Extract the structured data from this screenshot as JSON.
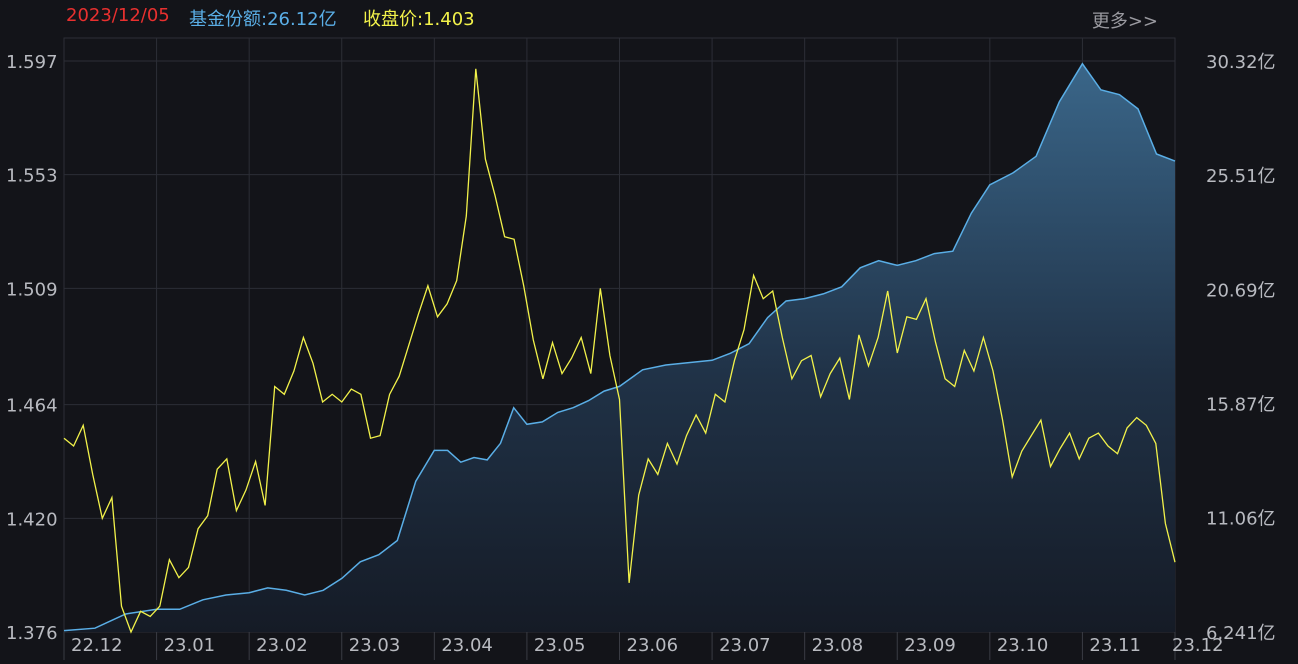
{
  "header": {
    "date": "2023/12/05",
    "shares_label": "基金份额:",
    "shares_value": "26.12亿",
    "price_label": "收盘价:",
    "price_value": "1.403",
    "more_label": "更多>>"
  },
  "colors": {
    "background": "#131419",
    "date": "#e8302f",
    "shares": "#5aaee6",
    "price": "#f2f24a",
    "grid": "#2c2e36",
    "area_top": "#33597c",
    "area_bottom": "#161c28"
  },
  "chart_data": {
    "type": "line",
    "x_tick_labels": [
      "22.12",
      "23.01",
      "23.02",
      "23.03",
      "23.04",
      "23.05",
      "23.06",
      "23.07",
      "23.08",
      "23.09",
      "23.10",
      "23.11",
      "23.12"
    ],
    "left_axis": {
      "ticks": [
        1.597,
        1.553,
        1.509,
        1.464,
        1.42,
        1.376
      ],
      "tick_labels": [
        "1.597",
        "1.553",
        "1.509",
        "1.464",
        "1.420",
        "1.376"
      ],
      "ylim": [
        1.376,
        1.597
      ]
    },
    "right_axis": {
      "ticks": [
        30.32,
        25.51,
        20.69,
        15.87,
        11.06,
        6.241
      ],
      "tick_labels": [
        "30.32亿",
        "25.51亿",
        "20.69亿",
        "15.87亿",
        "11.06亿",
        "6.241亿"
      ],
      "ylim": [
        6.241,
        30.32
      ]
    },
    "series": [
      {
        "name": "基金份额",
        "axis": "right",
        "style": "area",
        "color": "#5aaee6",
        "x": [
          "22.12",
          "22.12",
          "22.12",
          "23.01",
          "23.01",
          "23.01",
          "23.01",
          "23.02",
          "23.02",
          "23.02",
          "23.02",
          "23.02",
          "23.03",
          "23.03",
          "23.03",
          "23.03",
          "23.03",
          "23.04",
          "23.04",
          "23.04",
          "23.04",
          "23.04",
          "23.04",
          "23.04",
          "23.05",
          "23.05",
          "23.05",
          "23.05",
          "23.05",
          "23.05",
          "23.06",
          "23.06",
          "23.06",
          "23.06",
          "23.07",
          "23.07",
          "23.07",
          "23.07",
          "23.07",
          "23.08",
          "23.08",
          "23.08",
          "23.08",
          "23.08",
          "23.09",
          "23.09",
          "23.09",
          "23.09",
          "23.09",
          "23.10",
          "23.10",
          "23.10",
          "23.10",
          "23.11",
          "23.11",
          "23.11",
          "23.11",
          "23.11",
          "23.12"
        ],
        "values": [
          6.3,
          6.4,
          7.0,
          7.2,
          7.2,
          7.6,
          7.8,
          7.9,
          8.1,
          8.0,
          7.8,
          8.0,
          8.5,
          9.2,
          9.5,
          10.1,
          12.6,
          13.9,
          13.9,
          13.4,
          13.6,
          13.5,
          14.2,
          15.7,
          15.0,
          15.1,
          15.5,
          15.7,
          16.0,
          16.4,
          16.6,
          17.3,
          17.5,
          17.6,
          17.7,
          18.0,
          18.4,
          19.5,
          20.2,
          20.3,
          20.5,
          20.8,
          21.6,
          21.9,
          21.7,
          21.9,
          22.2,
          22.3,
          23.9,
          25.1,
          25.6,
          26.3,
          28.6,
          30.2,
          29.1,
          28.9,
          28.3,
          26.4,
          26.1
        ]
      },
      {
        "name": "收盘价",
        "axis": "left",
        "style": "line",
        "color": "#f2f24a",
        "values": [
          1.451,
          1.448,
          1.456,
          1.437,
          1.42,
          1.428,
          1.386,
          1.376,
          1.384,
          1.382,
          1.386,
          1.404,
          1.397,
          1.401,
          1.416,
          1.421,
          1.439,
          1.443,
          1.423,
          1.431,
          1.442,
          1.425,
          1.471,
          1.468,
          1.477,
          1.49,
          1.48,
          1.465,
          1.468,
          1.465,
          1.47,
          1.468,
          1.451,
          1.452,
          1.468,
          1.475,
          1.487,
          1.499,
          1.51,
          1.498,
          1.503,
          1.512,
          1.537,
          1.594,
          1.559,
          1.545,
          1.529,
          1.528,
          1.51,
          1.489,
          1.474,
          1.488,
          1.476,
          1.482,
          1.49,
          1.476,
          1.509,
          1.483,
          1.466,
          1.395,
          1.429,
          1.443,
          1.437,
          1.449,
          1.441,
          1.452,
          1.46,
          1.453,
          1.468,
          1.465,
          1.481,
          1.493,
          1.514,
          1.505,
          1.508,
          1.49,
          1.474,
          1.481,
          1.483,
          1.467,
          1.476,
          1.482,
          1.466,
          1.491,
          1.479,
          1.49,
          1.508,
          1.484,
          1.498,
          1.497,
          1.505,
          1.488,
          1.474,
          1.471,
          1.485,
          1.477,
          1.49,
          1.477,
          1.458,
          1.436,
          1.446,
          1.452,
          1.458,
          1.44,
          1.447,
          1.453,
          1.443,
          1.451,
          1.453,
          1.448,
          1.445,
          1.455,
          1.459,
          1.456,
          1.449,
          1.418,
          1.403
        ]
      }
    ],
    "grid": true
  }
}
